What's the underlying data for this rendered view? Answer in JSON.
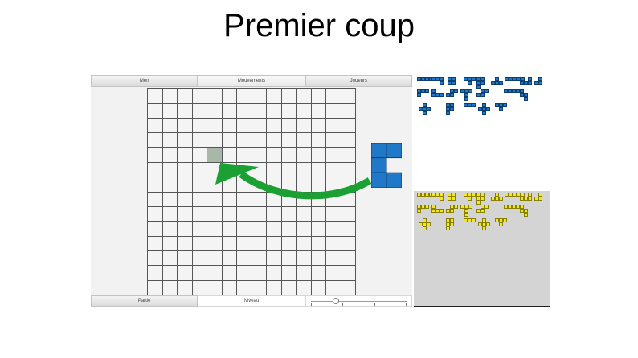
{
  "slide": {
    "title": "Premier coup"
  },
  "app": {
    "top_tabs": [
      "Men",
      "Mouvements",
      "Joueurs"
    ],
    "bottom_tabs": [
      "Partie",
      "Niveau"
    ],
    "board": {
      "rows": 14,
      "cols": 14,
      "highlight_cell": {
        "row": 4,
        "col": 4
      }
    },
    "slider_level": 0.25
  },
  "players": {
    "blue": {
      "color": "#1f78c8",
      "border": "#0d3f70"
    },
    "yellow": {
      "color": "#f2e81c",
      "border": "#8a8000"
    }
  },
  "arrow": {
    "color": "#1aa033"
  },
  "icons": {
    "played_piece": "blue-c-piece-icon",
    "arrow": "curved-arrow-icon"
  }
}
